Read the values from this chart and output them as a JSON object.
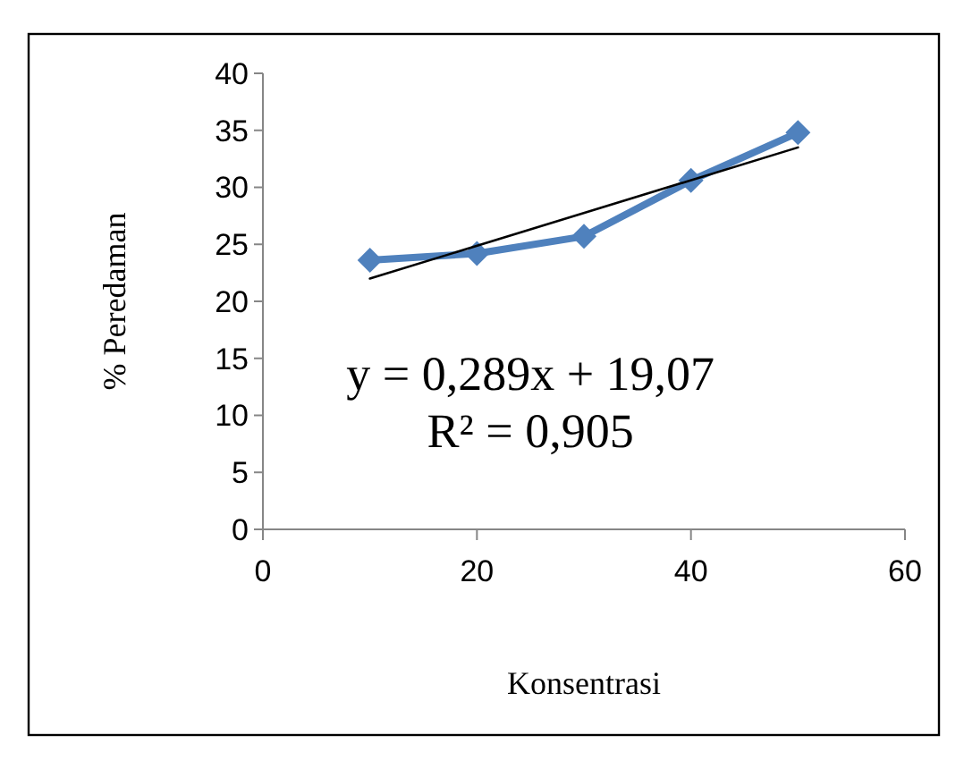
{
  "chart_data": {
    "type": "line",
    "xlabel": "Konsentrasi",
    "ylabel": "% Peredaman",
    "x": [
      10,
      20,
      30,
      40,
      50
    ],
    "series": [
      {
        "color": "#4f81bd",
        "values": [
          23.6,
          24.2,
          25.7,
          30.6,
          34.8
        ],
        "marker": "diamond"
      },
      {
        "type": "line",
        "color": "#000000",
        "x": [
          10,
          50
        ],
        "values": [
          22.0,
          33.5
        ],
        "marker": "none"
      }
    ],
    "xlim": [
      0,
      60
    ],
    "xticks": [
      0,
      20,
      40,
      60
    ],
    "ylim": [
      0,
      40
    ],
    "yticks": [
      0,
      5,
      10,
      15,
      20,
      25,
      30,
      35,
      40
    ],
    "grid": false,
    "annotations": [
      "y = 0,289x + 19,07",
      "R² = 0,905"
    ]
  }
}
